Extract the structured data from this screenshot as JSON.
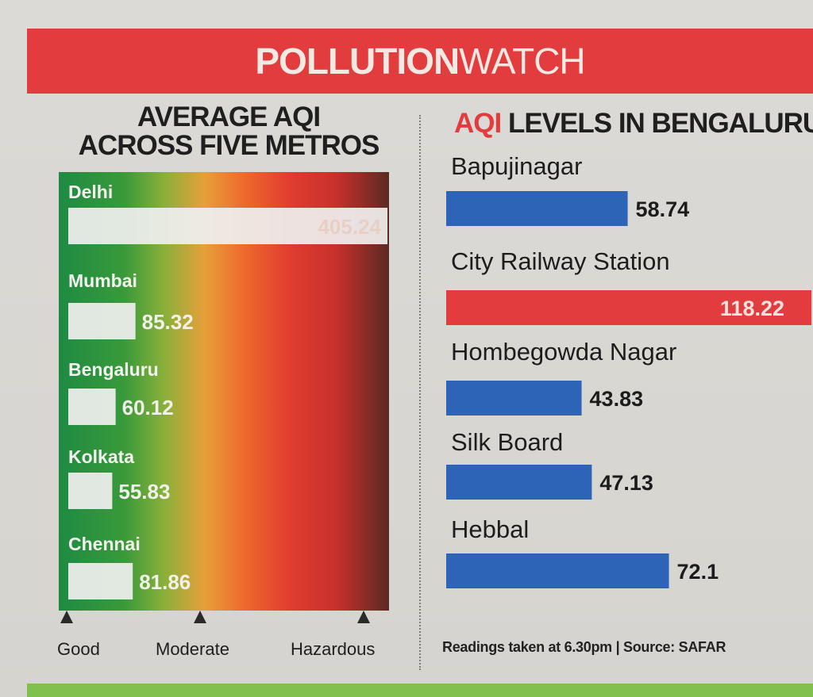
{
  "banner": {
    "word1": "POLLUTION",
    "word2": "WATCH"
  },
  "left_title": {
    "line1": "AVERAGE AQI",
    "line2": "ACROSS FIVE METROS"
  },
  "right_title": {
    "aqi": "AQI",
    "rest": " LEVELS IN BENGALURU"
  },
  "scale": {
    "good": "Good",
    "moderate": "Moderate",
    "hazardous": "Hazardous"
  },
  "footnote": "Readings taken at 6.30pm | Source: SAFAR",
  "colors": {
    "banner_red": "#e23c3e",
    "bar_blue": "#2d64b8",
    "bar_red": "#e23c3e",
    "metro_bar": "#efefee",
    "divider": "#7e7d79",
    "bottom_strip": "#7fc04e"
  },
  "chart_data": [
    {
      "type": "bar",
      "orientation": "horizontal",
      "title": "AVERAGE AQI ACROSS FIVE METROS",
      "categories": [
        "Delhi",
        "Mumbai",
        "Bengaluru",
        "Kolkata",
        "Chennai"
      ],
      "values": [
        405.24,
        85.32,
        60.12,
        55.83,
        81.86
      ],
      "value_labels": [
        "405.24",
        "85.32",
        "60.12",
        "55.83",
        "81.86"
      ],
      "background_scale": [
        "Good",
        "Moderate",
        "Hazardous"
      ]
    },
    {
      "type": "bar",
      "orientation": "horizontal",
      "title": "AQI LEVELS IN BENGALURU",
      "categories": [
        "Bapujinagar",
        "City Railway Station",
        "Hombegowda Nagar",
        "Silk Board",
        "Hebbal"
      ],
      "values": [
        58.74,
        118.22,
        43.83,
        47.13,
        72.1
      ],
      "value_labels": [
        "58.74",
        "118.22",
        "43.83",
        "47.13",
        "72.1"
      ],
      "highlight": "City Railway Station"
    }
  ]
}
